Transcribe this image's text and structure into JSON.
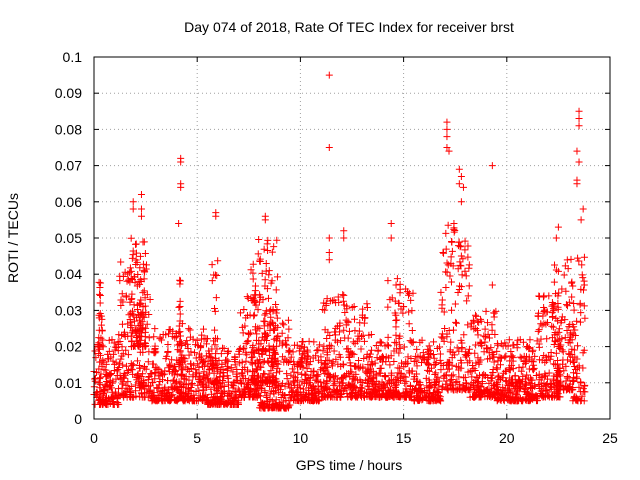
{
  "chart_data": {
    "type": "scatter",
    "title": "Day 074 of 2018, Rate Of TEC Index for receiver brst",
    "xlabel": "GPS time / hours",
    "ylabel": "ROTI / TECUs",
    "xlim": [
      0,
      25
    ],
    "ylim": [
      0,
      0.1
    ],
    "xticks": [
      "0",
      "5",
      "10",
      "15",
      "20",
      "25"
    ],
    "yticks": [
      "0",
      "0.01",
      "0.02",
      "0.03",
      "0.04",
      "0.05",
      "0.06",
      "0.07",
      "0.08",
      "0.09",
      "0.1"
    ],
    "grid": true,
    "marker": "+",
    "color": "#ff0000",
    "series": [
      {
        "points": [
          [
            11.4,
            0.095
          ],
          [
            11.4,
            0.075
          ],
          [
            19.3,
            0.07
          ],
          [
            19.3,
            0.037
          ],
          [
            4.2,
            0.072
          ],
          [
            4.2,
            0.071
          ],
          [
            4.2,
            0.065
          ],
          [
            4.2,
            0.064
          ],
          [
            4.1,
            0.054
          ],
          [
            17.1,
            0.082
          ],
          [
            17.1,
            0.08
          ],
          [
            17.1,
            0.078
          ],
          [
            17.1,
            0.075
          ],
          [
            17.2,
            0.074
          ],
          [
            23.5,
            0.085
          ],
          [
            23.5,
            0.083
          ],
          [
            23.5,
            0.081
          ],
          [
            23.4,
            0.074
          ],
          [
            23.5,
            0.071
          ],
          [
            23.4,
            0.066
          ],
          [
            23.4,
            0.065
          ],
          [
            1.9,
            0.06
          ],
          [
            1.9,
            0.058
          ],
          [
            2.3,
            0.062
          ],
          [
            2.3,
            0.058
          ],
          [
            2.3,
            0.056
          ],
          [
            5.9,
            0.057
          ],
          [
            5.9,
            0.056
          ],
          [
            8.3,
            0.056
          ],
          [
            8.3,
            0.055
          ],
          [
            17.7,
            0.069
          ],
          [
            17.8,
            0.067
          ],
          [
            17.7,
            0.065
          ],
          [
            17.9,
            0.064
          ],
          [
            17.8,
            0.06
          ],
          [
            14.4,
            0.054
          ],
          [
            14.4,
            0.05
          ],
          [
            12.1,
            0.052
          ],
          [
            12.1,
            0.05
          ],
          [
            11.4,
            0.05
          ],
          [
            11.4,
            0.046
          ],
          [
            11.4,
            0.044
          ],
          [
            22.5,
            0.053
          ],
          [
            22.4,
            0.05
          ],
          [
            23.6,
            0.055
          ],
          [
            23.7,
            0.058
          ]
        ]
      }
    ],
    "dense_regions": [
      {
        "x0": 0.0,
        "x1": 1.2,
        "ymin": 0.004,
        "ymax": 0.022
      },
      {
        "x0": 0.2,
        "x1": 0.4,
        "ymin": 0.02,
        "ymax": 0.039
      },
      {
        "x0": 1.2,
        "x1": 2.8,
        "ymin": 0.006,
        "ymax": 0.045
      },
      {
        "x0": 1.8,
        "x1": 2.5,
        "ymin": 0.02,
        "ymax": 0.05
      },
      {
        "x0": 2.8,
        "x1": 5.5,
        "ymin": 0.005,
        "ymax": 0.025
      },
      {
        "x0": 4.1,
        "x1": 4.3,
        "ymin": 0.015,
        "ymax": 0.045
      },
      {
        "x0": 5.7,
        "x1": 6.0,
        "ymin": 0.01,
        "ymax": 0.045
      },
      {
        "x0": 5.5,
        "x1": 7.0,
        "ymin": 0.004,
        "ymax": 0.02
      },
      {
        "x0": 7.0,
        "x1": 8.0,
        "ymin": 0.006,
        "ymax": 0.035
      },
      {
        "x0": 7.6,
        "x1": 8.9,
        "ymin": 0.01,
        "ymax": 0.05
      },
      {
        "x0": 8.0,
        "x1": 9.5,
        "ymin": 0.003,
        "ymax": 0.028
      },
      {
        "x0": 9.5,
        "x1": 11.0,
        "ymin": 0.005,
        "ymax": 0.022
      },
      {
        "x0": 11.0,
        "x1": 12.5,
        "ymin": 0.006,
        "ymax": 0.035
      },
      {
        "x0": 12.5,
        "x1": 13.5,
        "ymin": 0.006,
        "ymax": 0.032
      },
      {
        "x0": 13.5,
        "x1": 14.2,
        "ymin": 0.006,
        "ymax": 0.022
      },
      {
        "x0": 14.2,
        "x1": 15.5,
        "ymin": 0.006,
        "ymax": 0.04
      },
      {
        "x0": 15.5,
        "x1": 16.8,
        "ymin": 0.005,
        "ymax": 0.022
      },
      {
        "x0": 16.8,
        "x1": 18.2,
        "ymin": 0.008,
        "ymax": 0.055
      },
      {
        "x0": 18.2,
        "x1": 19.5,
        "ymin": 0.006,
        "ymax": 0.03
      },
      {
        "x0": 19.5,
        "x1": 21.5,
        "ymin": 0.005,
        "ymax": 0.022
      },
      {
        "x0": 21.5,
        "x1": 22.6,
        "ymin": 0.006,
        "ymax": 0.035
      },
      {
        "x0": 22.3,
        "x1": 23.2,
        "ymin": 0.008,
        "ymax": 0.045
      },
      {
        "x0": 23.2,
        "x1": 23.8,
        "ymin": 0.005,
        "ymax": 0.045
      }
    ]
  }
}
